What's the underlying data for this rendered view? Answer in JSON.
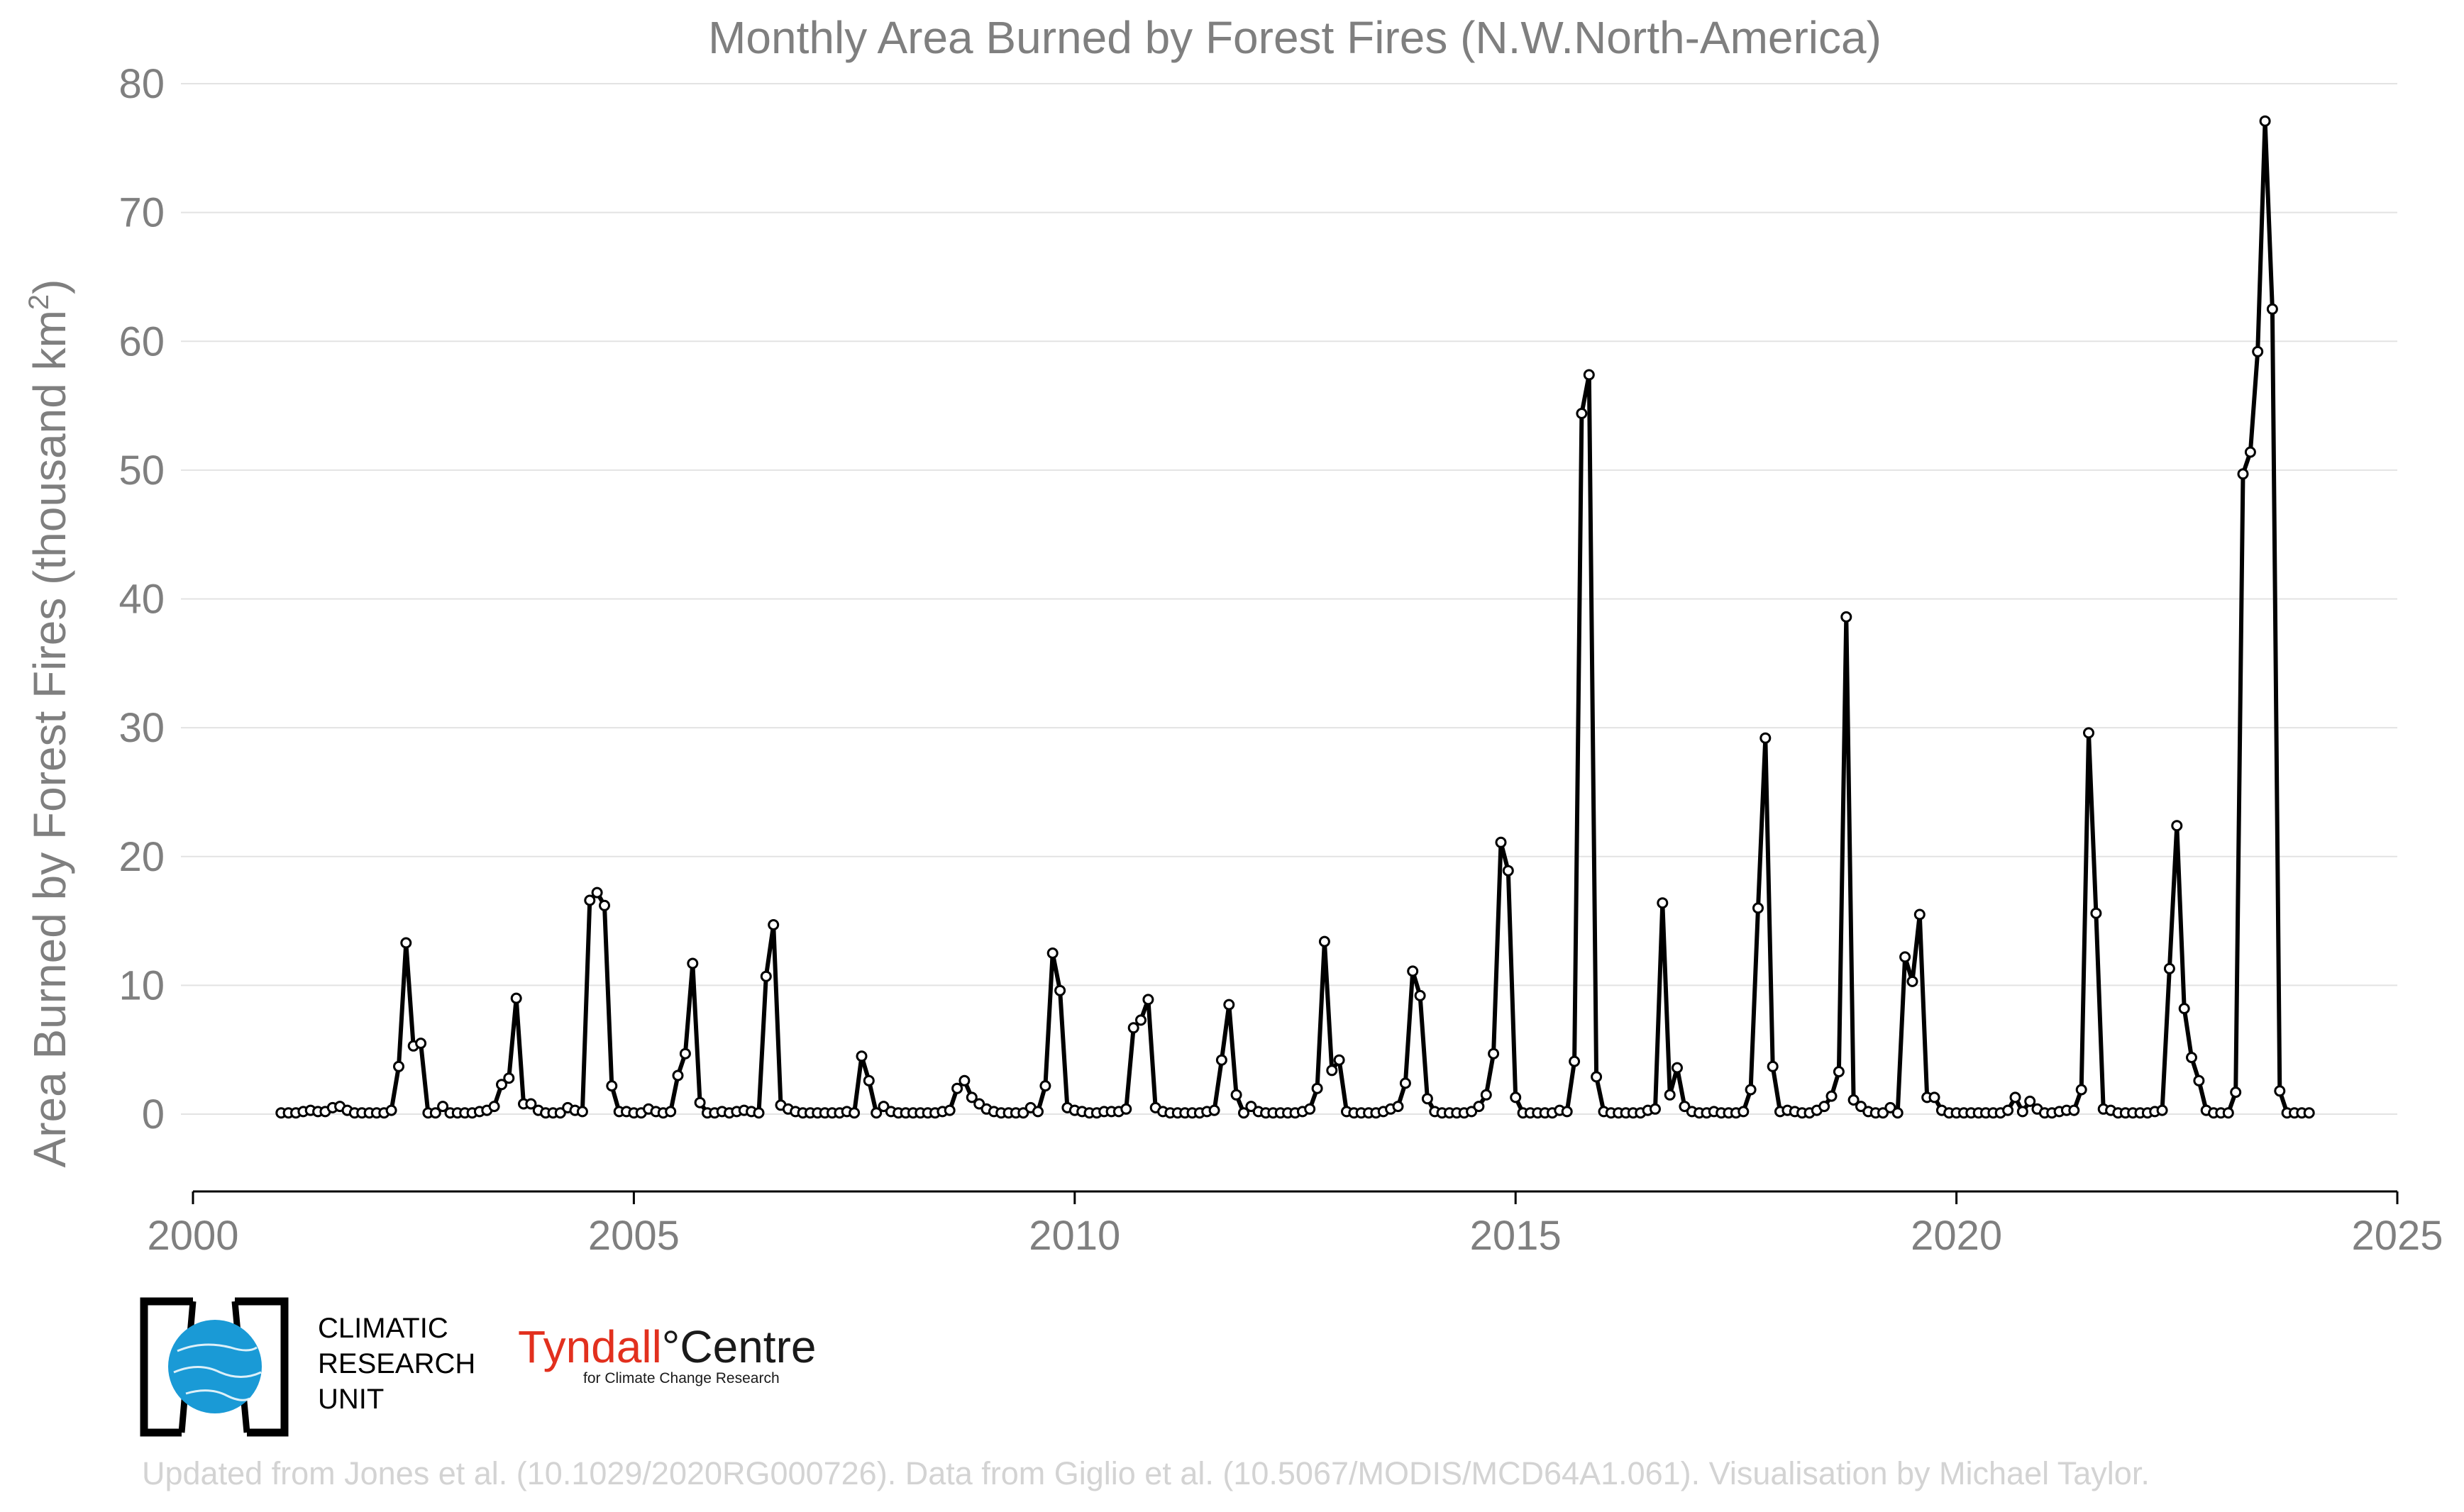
{
  "chart_data": {
    "type": "line",
    "title": "Monthly Area Burned by Forest Fires (N.W.North-America)",
    "xlabel": "",
    "ylabel_main": "Area Burned by Forest Fires (thousand km",
    "ylabel_sup": "2",
    "ylabel_close": ")",
    "xlim": [
      2000,
      2025
    ],
    "ylim": [
      -6,
      80
    ],
    "xticks": [
      "2000",
      "2005",
      "2010",
      "2015",
      "2020",
      "2025"
    ],
    "yticks": [
      "0",
      "10",
      "20",
      "30",
      "40",
      "50",
      "60",
      "70",
      "80"
    ],
    "grid": "horizontal",
    "start_year": 2001,
    "start_month": 1,
    "series": [
      {
        "name": "Monthly area burned",
        "color": "#000000",
        "values": [
          0.1,
          0.1,
          0.1,
          0.2,
          0.3,
          0.2,
          0.2,
          0.5,
          0.6,
          0.3,
          0.1,
          0.1,
          0.1,
          0.1,
          0.1,
          0.3,
          3.7,
          13.3,
          5.3,
          5.5,
          0.1,
          0.1,
          0.6,
          0.1,
          0.1,
          0.1,
          0.1,
          0.2,
          0.3,
          0.6,
          2.3,
          2.8,
          9.0,
          0.8,
          0.8,
          0.3,
          0.1,
          0.1,
          0.1,
          0.5,
          0.3,
          0.2,
          16.6,
          17.2,
          16.2,
          2.2,
          0.2,
          0.2,
          0.1,
          0.1,
          0.4,
          0.2,
          0.1,
          0.2,
          3.0,
          4.7,
          11.7,
          0.9,
          0.1,
          0.1,
          0.2,
          0.1,
          0.2,
          0.3,
          0.2,
          0.1,
          10.7,
          14.7,
          0.7,
          0.4,
          0.2,
          0.1,
          0.1,
          0.1,
          0.1,
          0.1,
          0.1,
          0.2,
          0.1,
          4.5,
          2.6,
          0.1,
          0.6,
          0.2,
          0.1,
          0.1,
          0.1,
          0.1,
          0.1,
          0.1,
          0.2,
          0.3,
          2.0,
          2.6,
          1.3,
          0.8,
          0.4,
          0.2,
          0.1,
          0.1,
          0.1,
          0.1,
          0.5,
          0.2,
          2.2,
          12.5,
          9.6,
          0.5,
          0.3,
          0.2,
          0.1,
          0.1,
          0.2,
          0.2,
          0.2,
          0.4,
          6.7,
          7.3,
          8.9,
          0.5,
          0.2,
          0.1,
          0.1,
          0.1,
          0.1,
          0.1,
          0.2,
          0.3,
          4.2,
          8.5,
          1.5,
          0.1,
          0.6,
          0.2,
          0.1,
          0.1,
          0.1,
          0.1,
          0.1,
          0.2,
          0.4,
          2.0,
          13.4,
          3.4,
          4.2,
          0.2,
          0.1,
          0.1,
          0.1,
          0.1,
          0.2,
          0.4,
          0.6,
          2.4,
          11.1,
          9.2,
          1.2,
          0.2,
          0.1,
          0.1,
          0.1,
          0.1,
          0.2,
          0.6,
          1.5,
          4.7,
          21.1,
          18.9,
          1.3,
          0.1,
          0.1,
          0.1,
          0.1,
          0.1,
          0.3,
          0.2,
          4.1,
          54.4,
          57.4,
          2.9,
          0.2,
          0.1,
          0.1,
          0.1,
          0.1,
          0.1,
          0.3,
          0.4,
          16.4,
          1.5,
          3.6,
          0.6,
          0.2,
          0.1,
          0.1,
          0.2,
          0.1,
          0.1,
          0.1,
          0.2,
          1.9,
          16.0,
          29.2,
          3.7,
          0.2,
          0.3,
          0.2,
          0.1,
          0.1,
          0.3,
          0.6,
          1.4,
          3.3,
          38.6,
          1.1,
          0.6,
          0.2,
          0.1,
          0.1,
          0.5,
          0.1,
          12.2,
          10.3,
          15.5,
          1.3,
          1.3,
          0.3,
          0.1,
          0.1,
          0.1,
          0.1,
          0.1,
          0.1,
          0.1,
          0.1,
          0.3,
          1.3,
          0.2,
          1.0,
          0.4,
          0.1,
          0.1,
          0.2,
          0.3,
          0.3,
          1.9,
          29.6,
          15.6,
          0.4,
          0.3,
          0.1,
          0.1,
          0.1,
          0.1,
          0.1,
          0.2,
          0.3,
          11.3,
          22.4,
          8.2,
          4.4,
          2.6,
          0.3,
          0.1,
          0.1,
          0.1,
          1.7,
          49.7,
          51.4,
          59.2,
          77.1,
          62.5,
          1.8,
          0.1,
          0.1,
          0.1,
          0.1
        ]
      }
    ]
  },
  "logos": {
    "cru_line1": "CLIMATIC",
    "cru_line2": "RESEARCH",
    "cru_line3": "UNIT",
    "tyndall_a": "Tyndall",
    "tyndall_deg": "°",
    "tyndall_b": "Centre",
    "tyndall_sub": "for Climate Change Research"
  },
  "credit": "Updated from Jones et al. (10.1029/2020RG000726). Data from Giglio et al. (10.5067/MODIS/MCD64A1.061). Visualisation by Michael Taylor."
}
